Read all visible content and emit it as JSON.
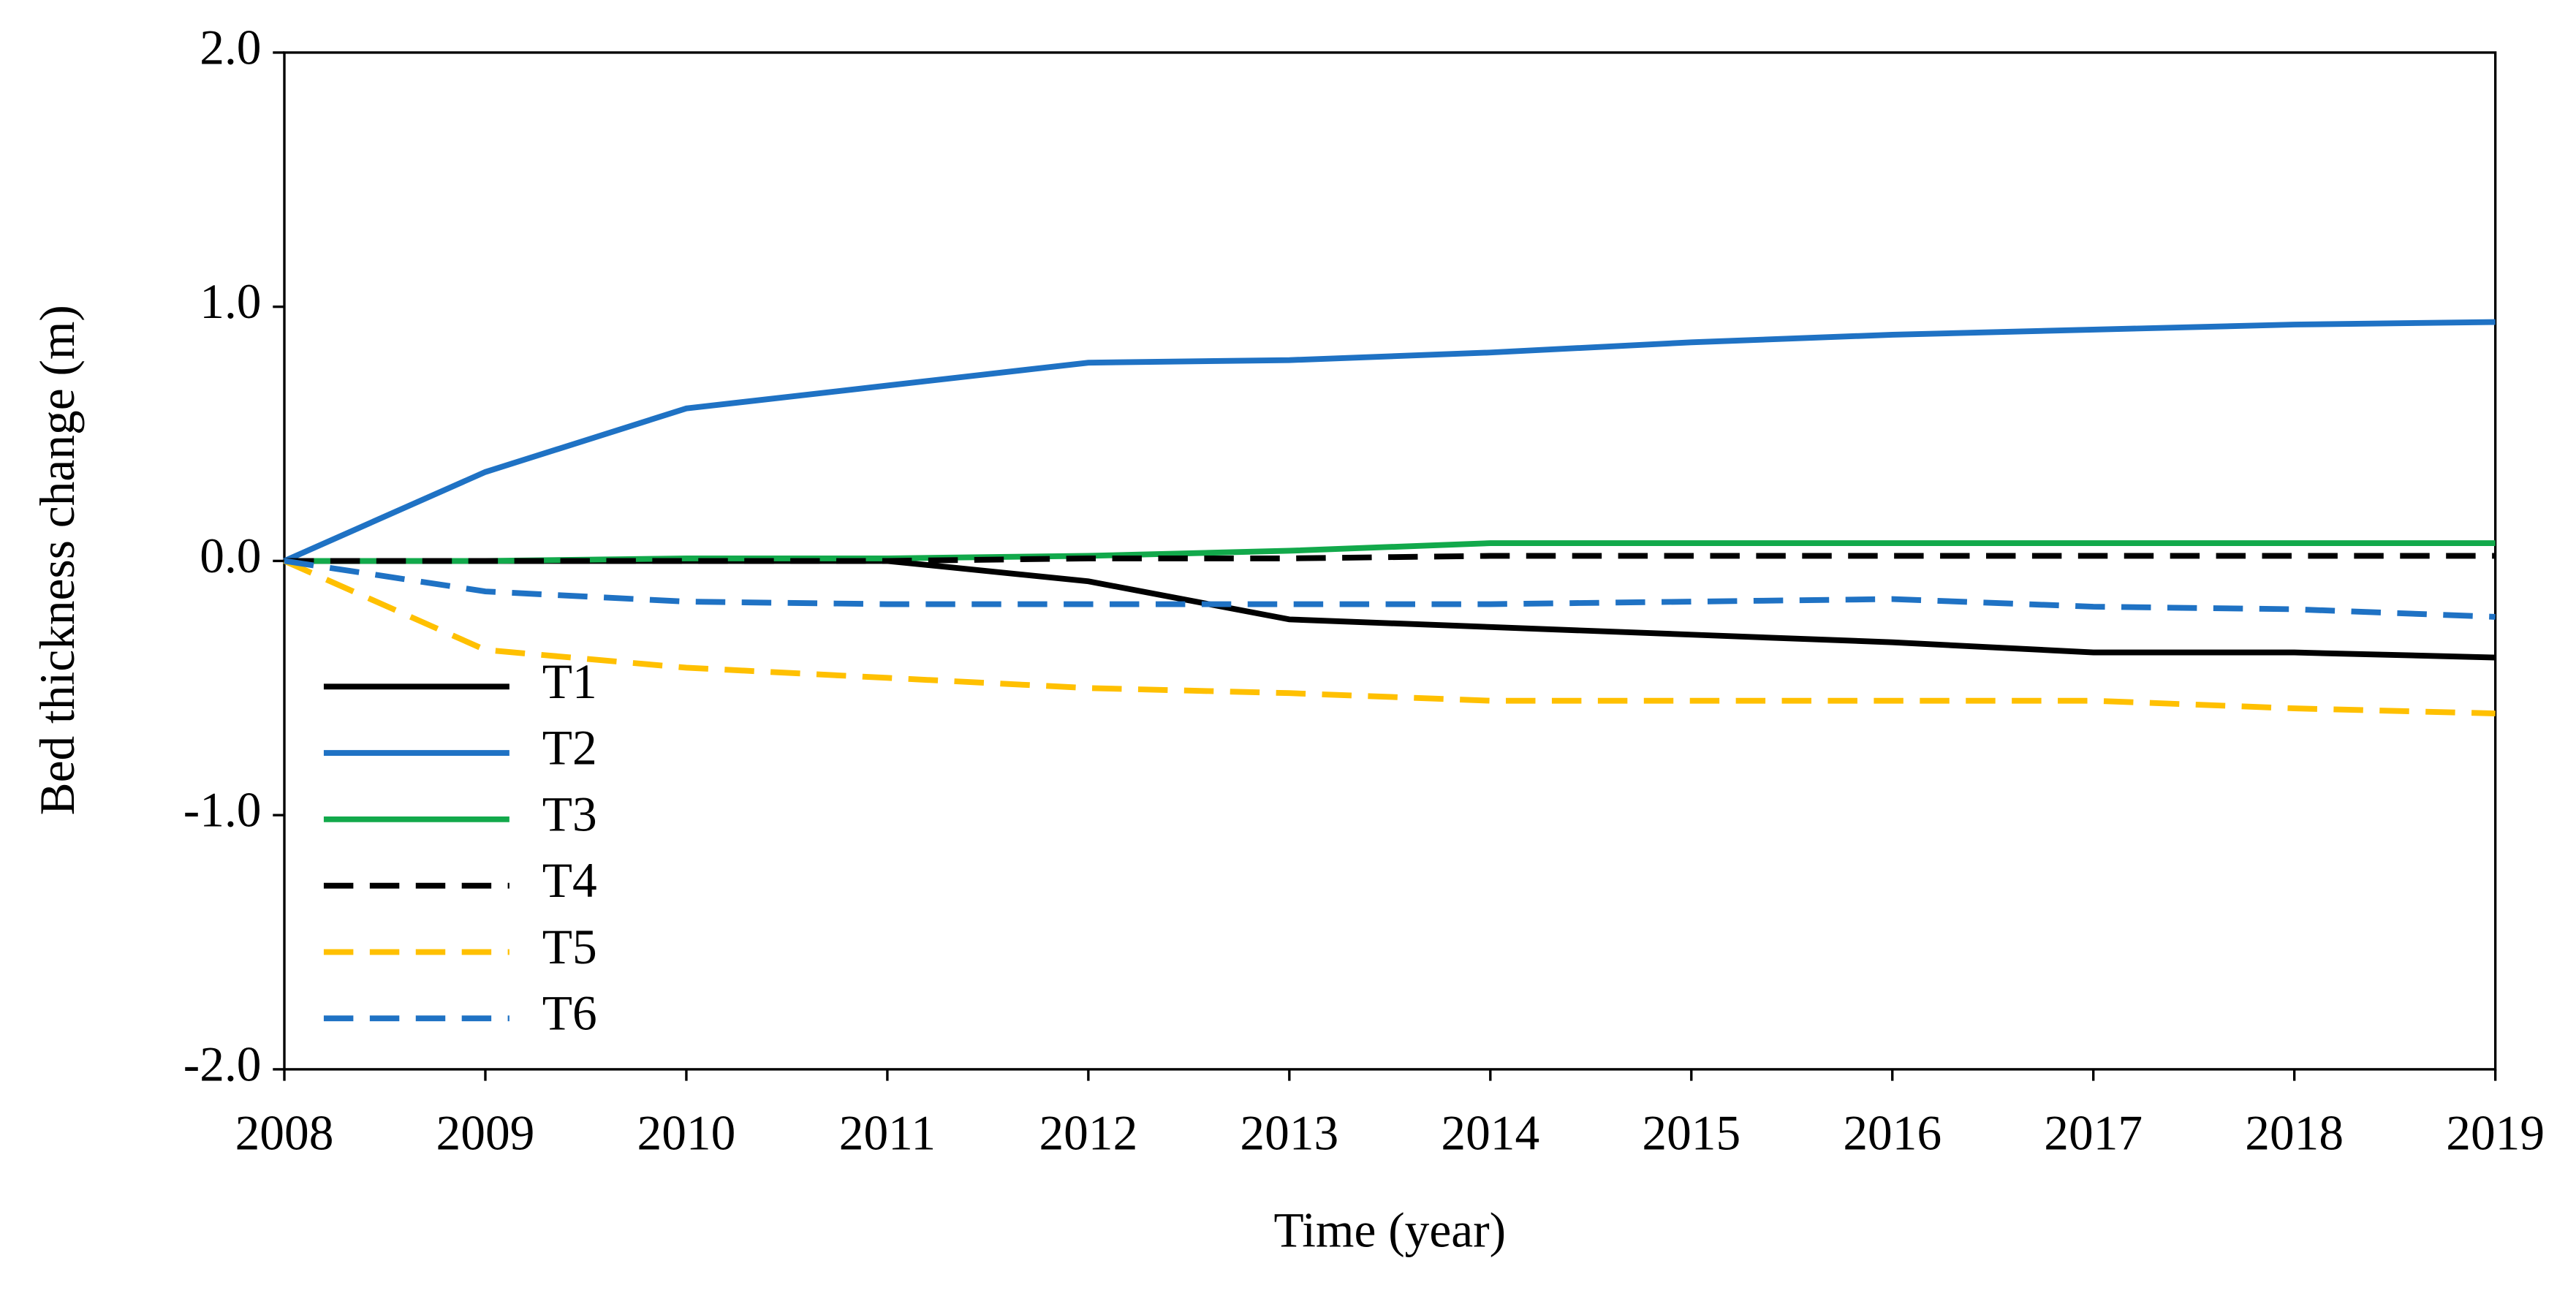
{
  "chart_data": {
    "type": "line",
    "xlabel": "Time (year)",
    "ylabel": "Bed thickness change (m)",
    "x": [
      2008,
      2009,
      2010,
      2011,
      2012,
      2013,
      2014,
      2015,
      2016,
      2017,
      2018,
      2019
    ],
    "xlim": [
      2008,
      2019
    ],
    "xticks": [
      2008,
      2009,
      2010,
      2011,
      2012,
      2013,
      2014,
      2015,
      2016,
      2017,
      2018,
      2019
    ],
    "ylim": [
      -2,
      2
    ],
    "yticks": [
      {
        "value": -2,
        "label": "-2.0"
      },
      {
        "value": -1,
        "label": "-1.0"
      },
      {
        "value": 0,
        "label": "0.0"
      },
      {
        "value": 1,
        "label": "1.0"
      },
      {
        "value": 2,
        "label": "2.0"
      }
    ],
    "legend": "lower left",
    "series": [
      {
        "name": "T1",
        "color": "#000000",
        "dashed": false,
        "values": [
          0,
          0,
          0,
          0,
          -0.08,
          -0.23,
          -0.26,
          -0.29,
          -0.32,
          -0.36,
          -0.36,
          -0.38
        ]
      },
      {
        "name": "T2",
        "color": "#1f72c4",
        "dashed": false,
        "values": [
          0,
          0.35,
          0.6,
          0.69,
          0.78,
          0.79,
          0.82,
          0.86,
          0.89,
          0.91,
          0.93,
          0.94
        ]
      },
      {
        "name": "T3",
        "color": "#12a94b",
        "dashed": false,
        "values": [
          0,
          0,
          0.01,
          0.01,
          0.02,
          0.04,
          0.07,
          0.07,
          0.07,
          0.07,
          0.07,
          0.07
        ]
      },
      {
        "name": "T4",
        "color": "#000000",
        "dashed": true,
        "values": [
          0,
          0,
          0,
          0,
          0.01,
          0.01,
          0.02,
          0.02,
          0.02,
          0.02,
          0.02,
          0.02
        ]
      },
      {
        "name": "T5",
        "color": "#ffc000",
        "dashed": true,
        "values": [
          0,
          -0.35,
          -0.42,
          -0.46,
          -0.5,
          -0.52,
          -0.55,
          -0.55,
          -0.55,
          -0.55,
          -0.58,
          -0.6
        ]
      },
      {
        "name": "T6",
        "color": "#1f72c4",
        "dashed": true,
        "values": [
          0,
          -0.12,
          -0.16,
          -0.17,
          -0.17,
          -0.17,
          -0.17,
          -0.16,
          -0.15,
          -0.18,
          -0.19,
          -0.22
        ]
      }
    ]
  }
}
